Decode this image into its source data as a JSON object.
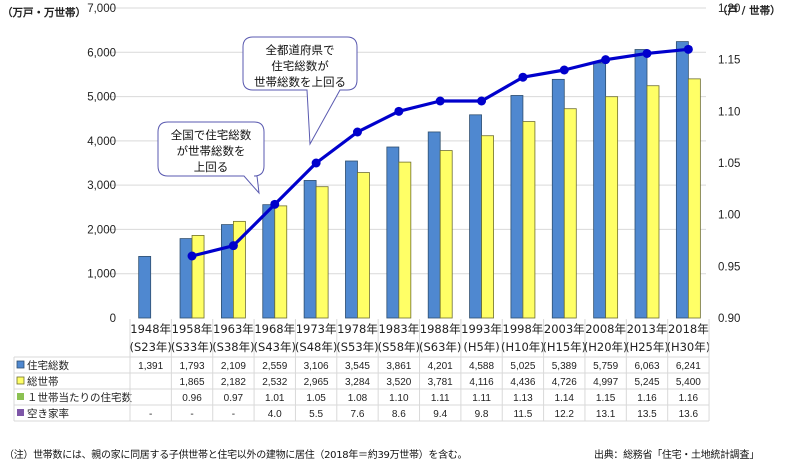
{
  "chart_data": {
    "type": "bar",
    "categories": [
      [
        "1948年",
        "(S23年)"
      ],
      [
        "1958年",
        "(S33年)"
      ],
      [
        "1963年",
        "(S38年)"
      ],
      [
        "1968年",
        "(S43年)"
      ],
      [
        "1973年",
        "(S48年)"
      ],
      [
        "1978年",
        "(S53年)"
      ],
      [
        "1983年",
        "(S58年)"
      ],
      [
        "1988年",
        "(S63年)"
      ],
      [
        "1993年",
        "(H5年)"
      ],
      [
        "1998年",
        "(H10年)"
      ],
      [
        "2003年",
        "(H15年)"
      ],
      [
        "2008年",
        "(H20年)"
      ],
      [
        "2013年",
        "(H25年)"
      ],
      [
        "2018年",
        "(H30年)"
      ]
    ],
    "series": [
      {
        "name": "住宅総数",
        "type": "bar",
        "axis": "left",
        "color": "#4f88d0",
        "values": [
          1391,
          1793,
          2109,
          2559,
          3106,
          3545,
          3861,
          4201,
          4588,
          5025,
          5389,
          5759,
          6063,
          6241
        ],
        "display": [
          "1,391",
          "1,793",
          "2,109",
          "2,559",
          "3,106",
          "3,545",
          "3,861",
          "4,201",
          "4,588",
          "5,025",
          "5,389",
          "5,759",
          "6,063",
          "6,241"
        ]
      },
      {
        "name": "総世帯",
        "type": "bar",
        "axis": "left",
        "color": "#ffff66",
        "values": [
          null,
          1865,
          2182,
          2532,
          2965,
          3284,
          3520,
          3781,
          4116,
          4436,
          4726,
          4997,
          5245,
          5400
        ],
        "display": [
          "",
          "1,865",
          "2,182",
          "2,532",
          "2,965",
          "3,284",
          "3,520",
          "3,781",
          "4,116",
          "4,436",
          "4,726",
          "4,997",
          "5,245",
          "5,400"
        ]
      },
      {
        "name": "１世帯当たりの住宅数",
        "type": "line",
        "axis": "right",
        "color": "#0000cc",
        "legend_color": "#8cc152",
        "values": [
          null,
          0.96,
          0.97,
          1.01,
          1.05,
          1.08,
          1.1,
          1.11,
          1.11,
          1.13,
          1.14,
          1.15,
          1.16,
          1.16
        ],
        "display": [
          "",
          "0.96",
          "0.97",
          "1.01",
          "1.05",
          "1.08",
          "1.10",
          "1.11",
          "1.11",
          "1.13",
          "1.14",
          "1.15",
          "1.16",
          "1.16"
        ]
      },
      {
        "name": "空き家率",
        "type": "table-only",
        "color": "#7e57a8",
        "values": [
          null,
          null,
          null,
          4.0,
          5.5,
          7.6,
          8.6,
          9.4,
          9.8,
          11.5,
          12.2,
          13.1,
          13.5,
          13.6
        ],
        "display": [
          "-",
          "-",
          "-",
          "4.0",
          "5.5",
          "7.6",
          "8.6",
          "9.4",
          "9.8",
          "11.5",
          "12.2",
          "13.1",
          "13.5",
          "13.6"
        ]
      }
    ],
    "line_plotted_values": [
      null,
      0.96,
      0.97,
      1.01,
      1.05,
      1.08,
      1.1,
      1.11,
      1.11,
      1.133,
      1.14,
      1.15,
      1.156,
      1.16
    ],
    "left_axis": {
      "label": "（万戸・万世帯）",
      "ylim": [
        0,
        7000
      ],
      "ticks": [
        "0",
        "1,000",
        "2,000",
        "3,000",
        "4,000",
        "5,000",
        "6,000",
        "7,000"
      ],
      "tick_values": [
        0,
        1000,
        2000,
        3000,
        4000,
        5000,
        6000,
        7000
      ]
    },
    "right_axis": {
      "label": "（戸 / 世帯）",
      "ylim": [
        0.9,
        1.2
      ],
      "ticks": [
        "0.90",
        "0.95",
        "1.00",
        "1.05",
        "1.10",
        "1.15",
        "1.20"
      ],
      "tick_values": [
        0.9,
        0.95,
        1.0,
        1.05,
        1.1,
        1.15,
        1.2
      ]
    },
    "grid": true,
    "legend": "data-table-left",
    "annotations": [
      {
        "lines": [
          "全国で住宅総数",
          "が世帯総数を",
          "上回る"
        ],
        "points_to": "1968"
      },
      {
        "lines": [
          "全都道府県で",
          "住宅総数が",
          "世帯総数を上回る"
        ],
        "points_to": "1973"
      }
    ]
  },
  "footer": {
    "note": "（注）世帯数には、親の家に同居する子供世帯と住宅以外の建物に居住（2018年＝約39万世帯）を含む。",
    "source": "出典：総務省「住宅・土地統計調査」"
  }
}
